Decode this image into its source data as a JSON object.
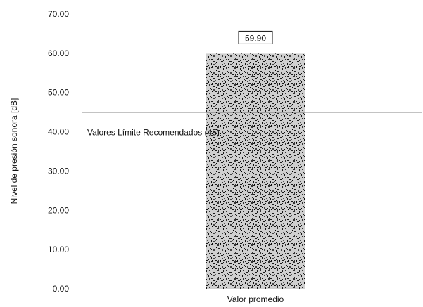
{
  "chart_data": {
    "type": "bar",
    "categories": [
      "Valor promedio"
    ],
    "values": [
      59.9
    ],
    "value_labels": [
      "59.90"
    ],
    "ylabel": "Nivel de presión sonora [dB]",
    "ylim": [
      0,
      70
    ],
    "yticks": [
      "0.00",
      "10.00",
      "20.00",
      "30.00",
      "40.00",
      "50.00",
      "60.00",
      "70.00"
    ],
    "grid": false,
    "reference_line": {
      "value": 45,
      "label": "Valores Límite Recomendados (45)"
    },
    "colors": {
      "bar_fill": "#bdbdbd",
      "bar_noise": "#1a1a1a",
      "line": "#111111"
    }
  }
}
